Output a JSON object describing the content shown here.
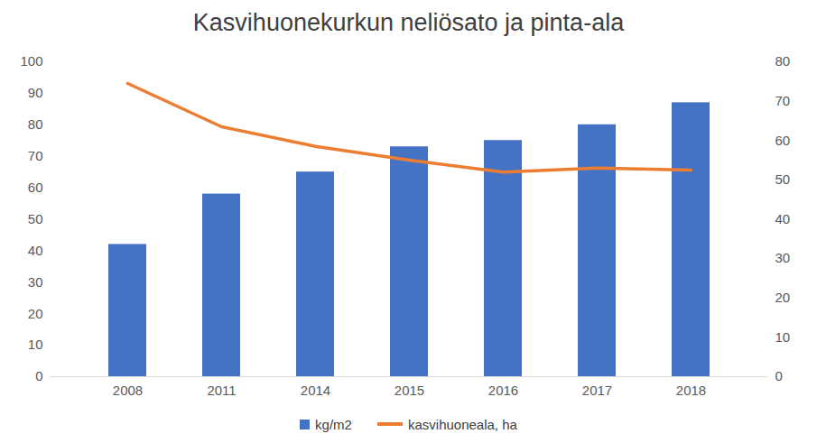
{
  "chart_data": {
    "type": "bar",
    "title": "Kasvihuonekurkun neliösato ja pinta-ala",
    "categories": [
      "2008",
      "2011",
      "2014",
      "2015",
      "2016",
      "2017",
      "2018"
    ],
    "series": [
      {
        "name": "kg/m2",
        "type": "bar",
        "color": "#4472c4",
        "values": [
          42,
          58,
          65,
          73,
          75,
          80,
          87
        ]
      },
      {
        "name": "kasvihuoneala, ha",
        "type": "line",
        "color": "#ed7d31",
        "axis": "y2",
        "values": [
          74.5,
          63.5,
          58.5,
          55,
          52,
          53,
          52.5
        ]
      }
    ],
    "ylim": [
      0,
      100
    ],
    "yticks": [
      0,
      10,
      20,
      30,
      40,
      50,
      60,
      70,
      80,
      90,
      100
    ],
    "y2lim": [
      0,
      80
    ],
    "y2ticks": [
      0,
      10,
      20,
      30,
      40,
      50,
      60,
      70,
      80
    ],
    "grid": false,
    "legend": "bottom"
  }
}
